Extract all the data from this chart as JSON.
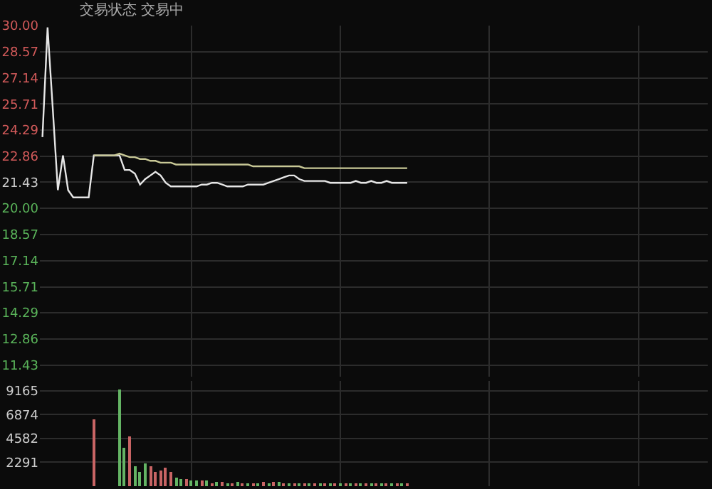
{
  "chart_data": [
    {
      "type": "line",
      "title": "交易状态 交易中",
      "categories": [
        null,
        null,
        null,
        null,
        null,
        null,
        null,
        null,
        null,
        null,
        null,
        null,
        null,
        null,
        null,
        null,
        null,
        null,
        null,
        null,
        null,
        null,
        null,
        null,
        null,
        null,
        null,
        null,
        null,
        null,
        null,
        null,
        null,
        null,
        null,
        null,
        null,
        null,
        null,
        null,
        null,
        null,
        null,
        null,
        null,
        null,
        null,
        null,
        null,
        null,
        null,
        null,
        null,
        null,
        null,
        null,
        null,
        null,
        null,
        null,
        null,
        null,
        null,
        null,
        null,
        null,
        null,
        null,
        null,
        null,
        null,
        null,
        null,
        null,
        null,
        null,
        null,
        null,
        null,
        null,
        null,
        null,
        null,
        null,
        null,
        null,
        null,
        null,
        null,
        null,
        null,
        null,
        null,
        null,
        null,
        null,
        null,
        null,
        null,
        null,
        null,
        null,
        null,
        null,
        null,
        null,
        null,
        null,
        null,
        null,
        null,
        null,
        null,
        null,
        null,
        null,
        null,
        null,
        null,
        null,
        null,
        null,
        null,
        null,
        null,
        null,
        null,
        null,
        null,
        null
      ],
      "series": [
        {
          "color": "#e6e6e6",
          "values": [
            23.9,
            29.9,
            25.5,
            21.0,
            22.9,
            21.0,
            20.6,
            20.6,
            20.6,
            20.6,
            22.9,
            22.9,
            22.9,
            22.9,
            22.9,
            22.9,
            22.1,
            22.1,
            21.9,
            21.3,
            21.6,
            21.8,
            22.0,
            21.8,
            21.4,
            21.2,
            21.2,
            21.2,
            21.2,
            21.2,
            21.2,
            21.3,
            21.3,
            21.4,
            21.4,
            21.3,
            21.2,
            21.2,
            21.2,
            21.2,
            21.3,
            21.3,
            21.3,
            21.3,
            21.4,
            21.5,
            21.6,
            21.7,
            21.8,
            21.8,
            21.6,
            21.5,
            21.5,
            21.5,
            21.5,
            21.5,
            21.4,
            21.4,
            21.4,
            21.4,
            21.4,
            21.5,
            21.4,
            21.4,
            21.5,
            21.4,
            21.4,
            21.5,
            21.4,
            21.4,
            21.4,
            21.4,
            null,
            null,
            null,
            null,
            null,
            null,
            null,
            null,
            null,
            null,
            null,
            null,
            null,
            null,
            null,
            null,
            null,
            null,
            null,
            null,
            null,
            null,
            null,
            null,
            null,
            null,
            null,
            null,
            null,
            null,
            null,
            null,
            null,
            null,
            null,
            null,
            null,
            null,
            null,
            null,
            null,
            null,
            null,
            null,
            null,
            null,
            null,
            null,
            null,
            null,
            null,
            null,
            null,
            null,
            null,
            null,
            null,
            null
          ]
        },
        {
          "color": "#c8c896",
          "values": [
            null,
            null,
            null,
            null,
            null,
            null,
            null,
            null,
            null,
            null,
            22.9,
            22.9,
            22.9,
            22.9,
            22.9,
            23.0,
            22.9,
            22.8,
            22.8,
            22.7,
            22.7,
            22.6,
            22.6,
            22.5,
            22.5,
            22.5,
            22.4,
            22.4,
            22.4,
            22.4,
            22.4,
            22.4,
            22.4,
            22.4,
            22.4,
            22.4,
            22.4,
            22.4,
            22.4,
            22.4,
            22.4,
            22.3,
            22.3,
            22.3,
            22.3,
            22.3,
            22.3,
            22.3,
            22.3,
            22.3,
            22.3,
            22.2,
            22.2,
            22.2,
            22.2,
            22.2,
            22.2,
            22.2,
            22.2,
            22.2,
            22.2,
            22.2,
            22.2,
            22.2,
            22.2,
            22.2,
            22.2,
            22.2,
            22.2,
            22.2,
            22.2,
            22.2,
            null,
            null,
            null,
            null,
            null,
            null,
            null,
            null,
            null,
            null,
            null,
            null,
            null,
            null,
            null,
            null,
            null,
            null,
            null,
            null,
            null,
            null,
            null,
            null,
            null,
            null,
            null,
            null,
            null,
            null,
            null,
            null,
            null,
            null,
            null,
            null,
            null,
            null,
            null,
            null,
            null,
            null,
            null,
            null,
            null,
            null,
            null,
            null,
            null,
            null,
            null,
            null,
            null,
            null,
            null,
            null,
            null,
            null
          ]
        }
      ],
      "ylim": [
        10.8,
        30
      ],
      "yticks": [
        {
          "value": 30,
          "label": "30.00"
        },
        28.57,
        27.14,
        25.71,
        24.29,
        {
          "value": 22.86,
          "label": "22.86"
        },
        21.43,
        {
          "value": 20,
          "label": "20.00"
        },
        18.57,
        17.14,
        15.71,
        14.29,
        12.86,
        11.43
      ],
      "grid": true,
      "tick_labels": "y"
    },
    {
      "type": "bar",
      "categories": [
        null,
        null,
        null,
        null,
        null,
        null,
        null,
        null,
        null,
        null,
        null,
        null,
        null,
        null,
        null,
        null,
        null,
        null,
        null,
        null,
        null,
        null,
        null,
        null,
        null,
        null,
        null,
        null,
        null,
        null,
        null,
        null,
        null,
        null,
        null,
        null,
        null,
        null,
        null,
        null,
        null,
        null,
        null,
        null,
        null,
        null,
        null,
        null,
        null,
        null,
        null,
        null,
        null,
        null,
        null,
        null,
        null,
        null,
        null,
        null,
        null,
        null,
        null,
        null,
        null,
        null,
        null,
        null,
        null,
        null,
        null,
        null,
        null,
        null,
        null,
        null,
        null,
        null,
        null,
        null,
        null,
        null,
        null,
        null,
        null,
        null,
        null,
        null,
        null,
        null,
        null,
        null,
        null,
        null,
        null,
        null,
        null,
        null,
        null,
        null,
        null,
        null,
        null,
        null,
        null,
        null,
        null,
        null,
        null,
        null,
        null,
        null,
        null,
        null,
        null,
        null,
        null,
        null,
        null,
        null,
        null,
        null,
        null,
        null,
        null,
        null,
        null,
        null,
        null,
        null
      ],
      "values": [
        null,
        null,
        null,
        null,
        null,
        null,
        null,
        null,
        null,
        null,
        6400,
        null,
        null,
        null,
        null,
        9200,
        3600,
        4700,
        1900,
        1400,
        2200,
        1900,
        1400,
        1550,
        1800,
        1400,
        800,
        600,
        700,
        500,
        500,
        550,
        500,
        300,
        350,
        450,
        300,
        250,
        350,
        250,
        300,
        250,
        300,
        350,
        300,
        350,
        400,
        300,
        250,
        300,
        250,
        300,
        250,
        200,
        250,
        200,
        250,
        200,
        200,
        250,
        200,
        200,
        250,
        200,
        200,
        150,
        200,
        150,
        200,
        150,
        200,
        150,
        null,
        null,
        null,
        null,
        null,
        null,
        null,
        null,
        null,
        null,
        null,
        null,
        null,
        null,
        null,
        null,
        null,
        null,
        null,
        null,
        null,
        null,
        null,
        null,
        null,
        null,
        null,
        null,
        null,
        null,
        null,
        null,
        null,
        null,
        null,
        null,
        null,
        null,
        null,
        null,
        null,
        null,
        null,
        null,
        null,
        null,
        null,
        null,
        null,
        null,
        null,
        null,
        null,
        null,
        null,
        null,
        null,
        null
      ],
      "colors": [
        "#c86464",
        "#c86464",
        "#c86464",
        "#c86464",
        "#c86464",
        "#c86464",
        "#c86464",
        "#c86464",
        "#c86464",
        "#c86464",
        "#c86464",
        "#c86464",
        "#c86464",
        "#c86464",
        "#c86464",
        "#64b464",
        "#64b464",
        "#c86464",
        "#64b464",
        "#64b464",
        "#64b464",
        "#c86464",
        "#c86464",
        "#c86464",
        "#c86464",
        "#c86464",
        "#64b464",
        "#64b464",
        "#c86464",
        "#64b464",
        "#64b464",
        "#c86464",
        "#64b464",
        "#c86464",
        "#64b464",
        "#c86464",
        "#64b464",
        "#c86464",
        "#64b464",
        "#c86464",
        "#64b464",
        "#c86464",
        "#64b464",
        "#c86464",
        "#64b464",
        "#c86464",
        "#64b464",
        "#c86464",
        "#64b464",
        "#c86464",
        "#64b464",
        "#c86464",
        "#64b464",
        "#c86464",
        "#64b464",
        "#c86464",
        "#64b464",
        "#c86464",
        "#64b464",
        "#c86464",
        "#64b464",
        "#c86464",
        "#64b464",
        "#c86464",
        "#64b464",
        "#c86464",
        "#64b464",
        "#c86464",
        "#64b464",
        "#c86464",
        "#64b464",
        "#c86464",
        "#64b464",
        "#64b464",
        "#64b464",
        "#64b464",
        "#64b464",
        "#64b464",
        "#64b464",
        "#64b464",
        "#64b464",
        "#64b464",
        "#64b464",
        "#64b464",
        "#64b464",
        "#64b464",
        "#64b464",
        "#64b464",
        "#64b464",
        "#64b464",
        "#64b464",
        "#64b464",
        "#64b464",
        "#64b464",
        "#64b464",
        "#64b464",
        "#64b464",
        "#64b464",
        "#64b464",
        "#64b464",
        "#64b464",
        "#64b464",
        "#64b464",
        "#64b464",
        "#64b464",
        "#64b464",
        "#64b464",
        "#64b464",
        "#64b464",
        "#64b464",
        "#64b464",
        "#64b464",
        "#64b464",
        "#64b464",
        "#64b464",
        "#64b464",
        "#64b464",
        "#64b464",
        "#64b464",
        "#64b464",
        "#64b464",
        "#64b464",
        "#64b464",
        "#64b464",
        "#64b464",
        "#64b464",
        "#64b464",
        "#64b464",
        "#64b464",
        "#64b464"
      ],
      "ylim": [
        0,
        10080
      ],
      "yticks": [
        9165,
        6874,
        4582,
        2291
      ],
      "grid": true,
      "tick_labels": "y"
    }
  ]
}
